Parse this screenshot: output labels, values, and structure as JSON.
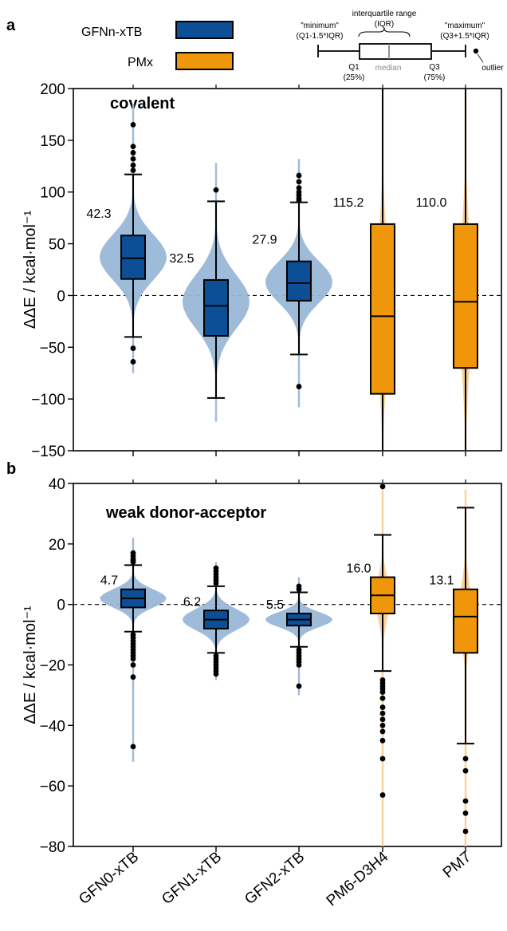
{
  "panel_labels": [
    "a",
    "b"
  ],
  "legend": {
    "items": [
      {
        "label": "GFNn-xTB",
        "color": "#0d4f96"
      },
      {
        "label": "PMx",
        "color": "#f0960a"
      }
    ]
  },
  "boxplot_key": {
    "iqr_title": "interquartile range",
    "iqr_sub": "(IQR)",
    "min_title": "\"minimum\"",
    "min_sub": "(Q1-1.5*IQR)",
    "max_title": "\"maximum\"",
    "max_sub": "(Q3+1.5*IQR)",
    "q1": "Q1",
    "q1_pct": "(25%)",
    "median": "median",
    "q3": "Q3",
    "q3_pct": "(75%)",
    "outlier": "outlier"
  },
  "colors": {
    "gfn_box": "#0d4f96",
    "gfn_violin": "#9ab7d8",
    "pm_box": "#f0960a",
    "pm_violin": "#f7cf93"
  },
  "chart_data": [
    {
      "type": "box",
      "panel": "a",
      "title": "covalent",
      "ylabel": "ΔΔE / kcal·mol⁻¹",
      "ylim": [
        -150,
        200
      ],
      "yticks": [
        -150,
        -100,
        -50,
        0,
        50,
        100,
        150,
        200
      ],
      "reference_line": 0,
      "categories": [
        "GFN0-xTB",
        "GFN1-xTB",
        "GFN2-xTB",
        "PM6-D3H4",
        "PM7"
      ],
      "series": [
        {
          "category": "GFN0-xTB",
          "group": "GFNn-xTB",
          "annotation": "42.3",
          "whisker_low": -40,
          "q1": 16,
          "median": 36,
          "q3": 58,
          "whisker_high": 117,
          "outliers": [
            165,
            144,
            138,
            132,
            126,
            121,
            -51,
            -64
          ],
          "violin": {
            "range": [
              -75,
              185
            ],
            "peak": 37,
            "spread": 22
          }
        },
        {
          "category": "GFN1-xTB",
          "group": "GFNn-xTB",
          "annotation": "32.5",
          "whisker_low": -99,
          "q1": -39,
          "median": -10,
          "q3": 15,
          "whisker_high": 91,
          "outliers": [
            102
          ],
          "violin": {
            "range": [
              -122,
              128
            ],
            "peak": -6,
            "spread": 26
          }
        },
        {
          "category": "GFN2-xTB",
          "group": "GFNn-xTB",
          "annotation": "27.9",
          "whisker_low": -57,
          "q1": -5,
          "median": 12,
          "q3": 33,
          "whisker_high": 90,
          "outliers": [
            116,
            110,
            104,
            100,
            97,
            94,
            92,
            -88
          ],
          "violin": {
            "range": [
              -108,
              132
            ],
            "peak": 13,
            "spread": 20
          }
        },
        {
          "category": "PM6-D3H4",
          "group": "PMx",
          "annotation": "115.2",
          "whisker_low": -150,
          "q1": -95,
          "median": -20,
          "q3": 69,
          "whisker_high": 200,
          "outliers": [],
          "violin": {
            "range": [
              -150,
              200
            ],
            "peak": -10,
            "spread": 60
          }
        },
        {
          "category": "PM7",
          "group": "PMx",
          "annotation": "110.0",
          "whisker_low": -150,
          "q1": -70,
          "median": -6,
          "q3": 69,
          "whisker_high": 200,
          "outliers": [],
          "violin": {
            "range": [
              -150,
              200
            ],
            "peak": -5,
            "spread": 60
          }
        }
      ]
    },
    {
      "type": "box",
      "panel": "b",
      "title": "weak donor-acceptor",
      "ylabel": "ΔΔE / kcal·mol⁻¹",
      "ylim": [
        -80,
        40
      ],
      "yticks": [
        -80,
        -60,
        -40,
        -20,
        0,
        20,
        40
      ],
      "reference_line": 0,
      "categories": [
        "GFN0-xTB",
        "GFN1-xTB",
        "GFN2-xTB",
        "PM6-D3H4",
        "PM7"
      ],
      "series": [
        {
          "category": "GFN0-xTB",
          "group": "GFNn-xTB",
          "annotation": "4.7",
          "whisker_low": -9,
          "q1": -1,
          "median": 2,
          "q3": 5,
          "whisker_high": 13,
          "outliers": [
            17,
            16,
            15,
            14.5,
            14,
            -10,
            -11,
            -12,
            -13,
            -14,
            -15,
            -16,
            -17,
            -18,
            -20,
            -24,
            -47
          ],
          "violin": {
            "range": [
              -52,
              22
            ],
            "peak": 2,
            "spread": 3
          }
        },
        {
          "category": "GFN1-xTB",
          "group": "GFNn-xTB",
          "annotation": "6.2",
          "whisker_low": -16,
          "q1": -8,
          "median": -5,
          "q3": -2,
          "whisker_high": 6,
          "outliers": [
            12,
            11,
            10,
            9,
            8,
            7,
            -17,
            -18,
            -19,
            -20,
            -21,
            -22,
            -23
          ],
          "violin": {
            "range": [
              -25,
              14
            ],
            "peak": -5,
            "spread": 3.5
          }
        },
        {
          "category": "GFN2-xTB",
          "group": "GFNn-xTB",
          "annotation": "5.5",
          "whisker_low": -14,
          "q1": -7,
          "median": -5,
          "q3": -3,
          "whisker_high": 4,
          "outliers": [
            5,
            6,
            -15,
            -16,
            -17,
            -18,
            -19,
            -20,
            -27
          ],
          "violin": {
            "range": [
              -30,
              9
            ],
            "peak": -5,
            "spread": 2.5
          }
        },
        {
          "category": "PM6-D3H4",
          "group": "PMx",
          "annotation": "16.0",
          "whisker_low": -22,
          "q1": -3,
          "median": 3,
          "q3": 9,
          "whisker_high": 23,
          "outliers": [
            39,
            -25,
            -26,
            -27,
            -28,
            -29,
            -31,
            -34,
            -36,
            -38,
            -40,
            -42,
            -45,
            -51,
            -63
          ],
          "violin": {
            "range": [
              -80,
              40
            ],
            "peak": 2,
            "spread": 7
          }
        },
        {
          "category": "PM7",
          "group": "PMx",
          "annotation": "13.1",
          "whisker_low": -46,
          "q1": -16,
          "median": -4,
          "q3": 5,
          "whisker_high": 32,
          "outliers": [
            -51,
            -55,
            -65,
            -69,
            -75
          ],
          "violin": {
            "range": [
              -80,
              38
            ],
            "peak": -3,
            "spread": 9
          }
        }
      ]
    }
  ]
}
